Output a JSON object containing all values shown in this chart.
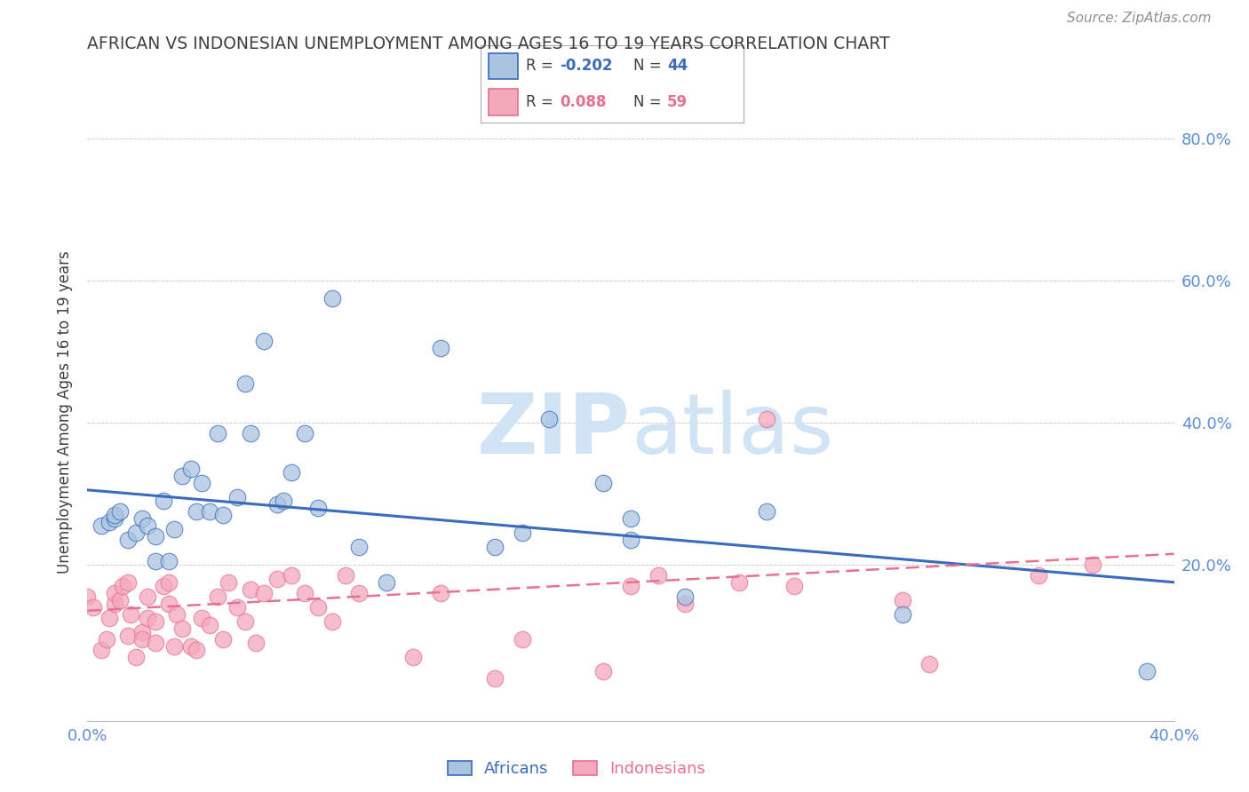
{
  "title": "AFRICAN VS INDONESIAN UNEMPLOYMENT AMONG AGES 16 TO 19 YEARS CORRELATION CHART",
  "source": "Source: ZipAtlas.com",
  "ylabel": "Unemployment Among Ages 16 to 19 years",
  "xlim": [
    0.0,
    0.4
  ],
  "ylim": [
    -0.02,
    0.85
  ],
  "yticks": [
    0.2,
    0.4,
    0.6,
    0.8
  ],
  "ytick_labels": [
    "20.0%",
    "40.0%",
    "60.0%",
    "80.0%"
  ],
  "xticks": [
    0.0,
    0.1,
    0.2,
    0.3,
    0.4
  ],
  "xtick_labels": [
    "0.0%",
    "",
    "",
    "",
    "40.0%"
  ],
  "legend_african_R": "-0.202",
  "legend_african_N": "44",
  "legend_indonesian_R": "0.088",
  "legend_indonesian_N": "59",
  "color_african": "#aac4e0",
  "color_indonesian": "#f4a9bb",
  "color_african_line": "#3a6bbd",
  "color_indonesian_line": "#e87090",
  "color_title": "#404040",
  "color_source": "#909090",
  "color_axis_labels": "#5b8dd9",
  "watermark_color": "#d0e4f5",
  "africans_x": [
    0.005,
    0.008,
    0.01,
    0.01,
    0.012,
    0.015,
    0.018,
    0.02,
    0.022,
    0.025,
    0.025,
    0.028,
    0.03,
    0.032,
    0.035,
    0.038,
    0.04,
    0.042,
    0.045,
    0.048,
    0.05,
    0.055,
    0.058,
    0.06,
    0.065,
    0.07,
    0.072,
    0.075,
    0.08,
    0.085,
    0.09,
    0.1,
    0.11,
    0.13,
    0.15,
    0.16,
    0.17,
    0.19,
    0.2,
    0.2,
    0.22,
    0.25,
    0.3,
    0.39
  ],
  "africans_y": [
    0.255,
    0.26,
    0.265,
    0.27,
    0.275,
    0.235,
    0.245,
    0.265,
    0.255,
    0.205,
    0.24,
    0.29,
    0.205,
    0.25,
    0.325,
    0.335,
    0.275,
    0.315,
    0.275,
    0.385,
    0.27,
    0.295,
    0.455,
    0.385,
    0.515,
    0.285,
    0.29,
    0.33,
    0.385,
    0.28,
    0.575,
    0.225,
    0.175,
    0.505,
    0.225,
    0.245,
    0.405,
    0.315,
    0.235,
    0.265,
    0.155,
    0.275,
    0.13,
    0.05
  ],
  "indonesians_x": [
    0.0,
    0.002,
    0.005,
    0.007,
    0.008,
    0.01,
    0.01,
    0.012,
    0.013,
    0.015,
    0.015,
    0.016,
    0.018,
    0.02,
    0.02,
    0.022,
    0.022,
    0.025,
    0.025,
    0.028,
    0.03,
    0.03,
    0.032,
    0.033,
    0.035,
    0.038,
    0.04,
    0.042,
    0.045,
    0.048,
    0.05,
    0.052,
    0.055,
    0.058,
    0.06,
    0.062,
    0.065,
    0.07,
    0.075,
    0.08,
    0.085,
    0.09,
    0.095,
    0.1,
    0.12,
    0.13,
    0.15,
    0.16,
    0.19,
    0.2,
    0.21,
    0.22,
    0.24,
    0.25,
    0.26,
    0.3,
    0.31,
    0.35,
    0.37
  ],
  "indonesians_y": [
    0.155,
    0.14,
    0.08,
    0.095,
    0.125,
    0.145,
    0.16,
    0.15,
    0.17,
    0.1,
    0.175,
    0.13,
    0.07,
    0.105,
    0.095,
    0.125,
    0.155,
    0.12,
    0.09,
    0.17,
    0.145,
    0.175,
    0.085,
    0.13,
    0.11,
    0.085,
    0.08,
    0.125,
    0.115,
    0.155,
    0.095,
    0.175,
    0.14,
    0.12,
    0.165,
    0.09,
    0.16,
    0.18,
    0.185,
    0.16,
    0.14,
    0.12,
    0.185,
    0.16,
    0.07,
    0.16,
    0.04,
    0.095,
    0.05,
    0.17,
    0.185,
    0.145,
    0.175,
    0.405,
    0.17,
    0.15,
    0.06,
    0.185,
    0.2
  ],
  "african_line_x0": 0.0,
  "african_line_x1": 0.4,
  "african_line_y0": 0.305,
  "african_line_y1": 0.175,
  "indonesian_line_x0": 0.0,
  "indonesian_line_x1": 0.4,
  "indonesian_line_y0": 0.135,
  "indonesian_line_y1": 0.215
}
